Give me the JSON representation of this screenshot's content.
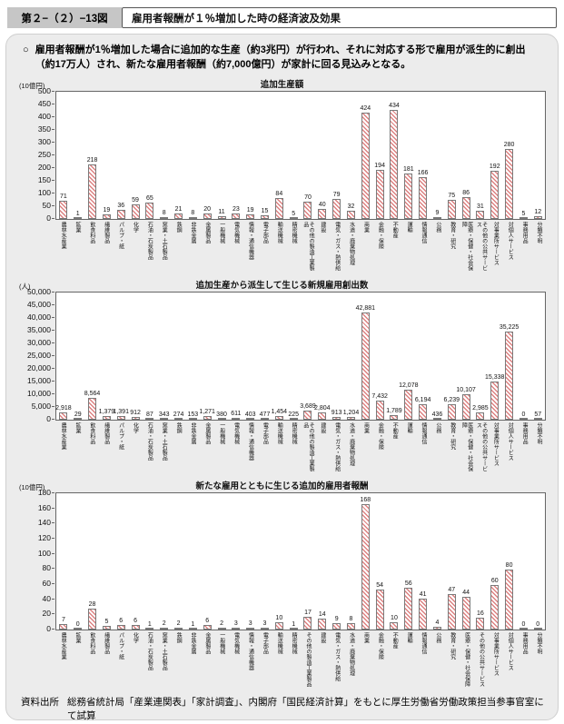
{
  "header": {
    "figure_label": "第２−（２）−13図",
    "title": "雇用者報酬が１％増加した時の経済波及効果"
  },
  "summary": {
    "marker": "○",
    "text": "雇用者報酬が1％増加した場合に追加的な生産（約3兆円）が行われ、それに対応する形で雇用が派生的に創出（約17万人）され、新たな雇用者報酬（約7,000億円）が家計に回る見込みとなる。"
  },
  "footer": {
    "label": "資料出所",
    "text": "総務省統計局「産業連関表」「家計調査」、内閣府「国民経済計算」をもとに厚生労働省労働政策担当参事官室にて試算"
  },
  "colors": {
    "bar_hatch": "#dc8181",
    "bar_border": "#7a7a7a",
    "panel_bg": "#ececec",
    "label_box_bg": "#c6c6c6"
  },
  "chart_data": [
    {
      "type": "bar",
      "title": "追加生産額",
      "unit": "(10億円)",
      "ylabel": "10億円",
      "ylim": [
        0,
        500
      ],
      "ytick_step": 50,
      "grid": false,
      "legend": "none",
      "categories": [
        "農林水産業",
        "鉱業",
        "飲食料品",
        "繊維製品",
        "パルプ・紙",
        "化学",
        "石油・石炭製品",
        "窯業・土石製品",
        "鉄鋼",
        "非鉄金属",
        "金属製品",
        "一般機械",
        "電気機械",
        "情報・通信機器",
        "電子部品",
        "輸送機械",
        "精密機械",
        "その他の製造工業製品",
        "建設",
        "電気・ガス・熱供給",
        "水道・廃棄物処理",
        "商業",
        "金融・保険",
        "不動産",
        "運輸",
        "情報通信",
        "公務",
        "教育・研究",
        "医療・保健・社会保障",
        "その他の公共サービス",
        "対事業所サービス",
        "対個人サービス",
        "事務用品",
        "分類不明"
      ],
      "values": [
        71,
        1,
        218,
        19,
        36,
        59,
        65,
        8,
        21,
        8,
        20,
        11,
        23,
        19,
        15,
        84,
        5,
        70,
        40,
        79,
        32,
        424,
        194,
        434,
        181,
        166,
        9,
        75,
        86,
        31,
        192,
        280,
        5,
        12
      ],
      "labels": [
        "71",
        "1",
        "218",
        "19",
        "36",
        "59",
        "65",
        "8",
        "21",
        "8",
        "20",
        "11",
        "23",
        "19",
        "15",
        "84",
        "5",
        "70",
        "40",
        "79",
        "32",
        "424",
        "194",
        "434",
        "181",
        "166",
        "9",
        "75",
        "86",
        "31",
        "192",
        "280",
        "5",
        "12"
      ]
    },
    {
      "type": "bar",
      "title": "追加生産から派生して生じる新規雇用創出数",
      "unit": "(人)",
      "ylabel": "人",
      "ylim": [
        0,
        50000
      ],
      "ytick_step": 5000,
      "grid": false,
      "legend": "none",
      "categories": [
        "農林水産業",
        "鉱業",
        "飲食料品",
        "繊維製品",
        "パルプ・紙",
        "化学",
        "石油・石炭製品",
        "窯業・土石製品",
        "鉄鋼",
        "非鉄金属",
        "金属製品",
        "一般機械",
        "電気機械",
        "情報・通信機器",
        "電子部品",
        "輸送機械",
        "精密機械",
        "その他の製造工業製品",
        "建設",
        "電気・ガス・熱供給",
        "水道・廃棄物処理",
        "商業",
        "金融・保険",
        "不動産",
        "運輸",
        "情報通信",
        "公務",
        "教育・研究",
        "医療・保健・社会保障",
        "その他の公共サービス",
        "対事業所サービス",
        "対個人サービス",
        "事務用品",
        "分類不明"
      ],
      "values": [
        2918,
        29,
        8564,
        1379,
        1391,
        912,
        87,
        343,
        274,
        153,
        1271,
        380,
        611,
        403,
        477,
        1454,
        225,
        3689,
        2804,
        913,
        1204,
        42881,
        7432,
        1789,
        12078,
        6194,
        436,
        6239,
        10107,
        2985,
        15338,
        35225,
        0,
        57
      ],
      "labels": [
        "2,918",
        "29",
        "8,564",
        "1,379",
        "1,391",
        "912",
        "87",
        "343",
        "274",
        "153",
        "1,271",
        "380",
        "611",
        "403",
        "477",
        "1,454",
        "225",
        "3,689",
        "2,804",
        "913",
        "1,204",
        "42,881",
        "7,432",
        "1,789",
        "12,078",
        "6,194",
        "436",
        "6,239",
        "10,107",
        "2,985",
        "15,338",
        "35,225",
        "0",
        "57"
      ]
    },
    {
      "type": "bar",
      "title": "新たな雇用とともに生じる追加的雇用者報酬",
      "unit": "(10億円)",
      "ylabel": "10億円",
      "ylim": [
        0,
        180
      ],
      "ytick_step": 20,
      "grid": false,
      "legend": "none",
      "categories": [
        "農林水産業",
        "鉱業",
        "飲食料品",
        "繊維製品",
        "パルプ・紙",
        "化学",
        "石油・石炭製品",
        "窯業・土石製品",
        "鉄鋼",
        "非鉄金属",
        "金属製品",
        "一般機械",
        "電気機械",
        "情報・通信機器",
        "電子部品",
        "輸送機械",
        "精密機械",
        "その他の製造工業製品",
        "建設",
        "電気・ガス・熱供給",
        "水道・廃棄物処理",
        "商業",
        "金融・保険",
        "不動産",
        "運輸",
        "情報通信",
        "公務",
        "教育・研究",
        "医療・保健・社会保障",
        "その他の公共サービス",
        "対事業所サービス",
        "対個人サービス",
        "事務用品",
        "分類不明"
      ],
      "values": [
        7,
        0,
        28,
        5,
        6,
        6,
        1,
        2,
        2,
        1,
        6,
        2,
        3,
        3,
        3,
        10,
        1,
        17,
        14,
        9,
        8,
        168,
        54,
        10,
        56,
        41,
        4,
        47,
        44,
        16,
        60,
        80,
        0,
        0
      ],
      "labels": [
        "7",
        "0",
        "28",
        "5",
        "6",
        "6",
        "1",
        "2",
        "2",
        "1",
        "6",
        "2",
        "3",
        "3",
        "3",
        "10",
        "1",
        "17",
        "14",
        "9",
        "8",
        "168",
        "54",
        "10",
        "56",
        "41",
        "4",
        "47",
        "44",
        "16",
        "60",
        "80",
        "0",
        "0"
      ]
    }
  ]
}
